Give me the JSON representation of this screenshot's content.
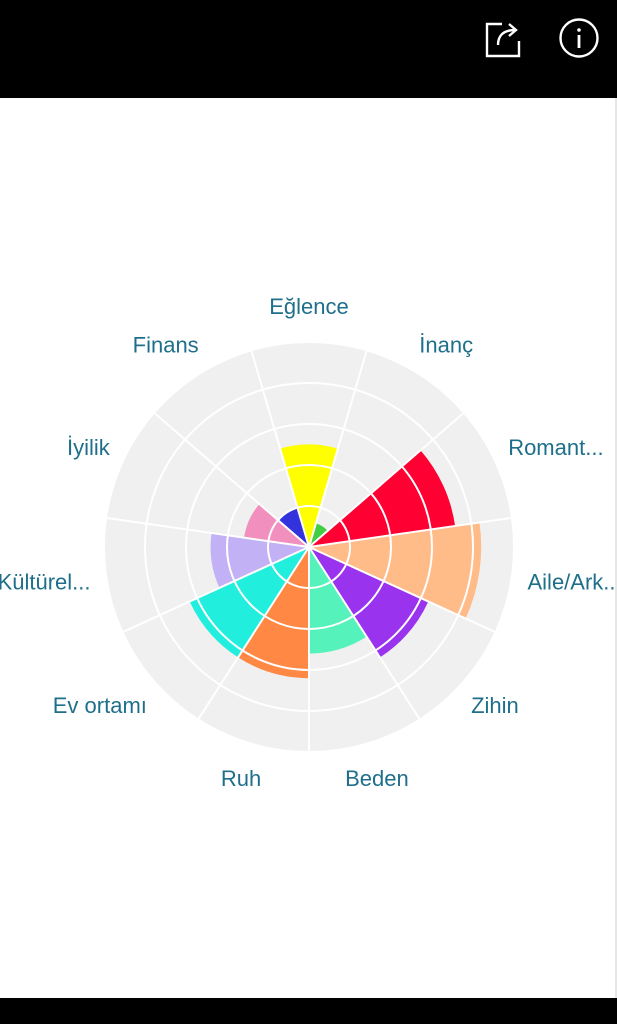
{
  "toolbar": {
    "share_icon": "share-icon",
    "info_icon": "info-icon",
    "background": "#000000",
    "icon_color": "#ffffff"
  },
  "chart_data": {
    "type": "polar-area",
    "max": 5,
    "rings": 5,
    "grid": true,
    "background_color": "#f0f0f0",
    "label_color": "#1f6f8b",
    "categories": [
      {
        "label": "Eğlence",
        "value": 2.5,
        "color": "#ffff00"
      },
      {
        "label": "İnanç",
        "value": 0.6,
        "color": "#44cc44"
      },
      {
        "label": "Romant...",
        "value": 3.6,
        "color": "#ff0033"
      },
      {
        "label": "Aile/Ark...",
        "value": 4.2,
        "color": "#ffbb88"
      },
      {
        "label": "Zihin",
        "value": 3.2,
        "color": "#9933ee"
      },
      {
        "label": "Beden",
        "value": 2.6,
        "color": "#55f2bb"
      },
      {
        "label": "Ruh",
        "value": 3.2,
        "color": "#ff8844"
      },
      {
        "label": "Ev ortamı",
        "value": 3.2,
        "color": "#22eedd"
      },
      {
        "label": "Kültürel...",
        "value": 2.4,
        "color": "#c3b1f5"
      },
      {
        "label": "İyilik",
        "value": 1.6,
        "color": "#f18fbf"
      },
      {
        "label": "Finans",
        "value": 1.0,
        "color": "#3333dd"
      }
    ]
  }
}
